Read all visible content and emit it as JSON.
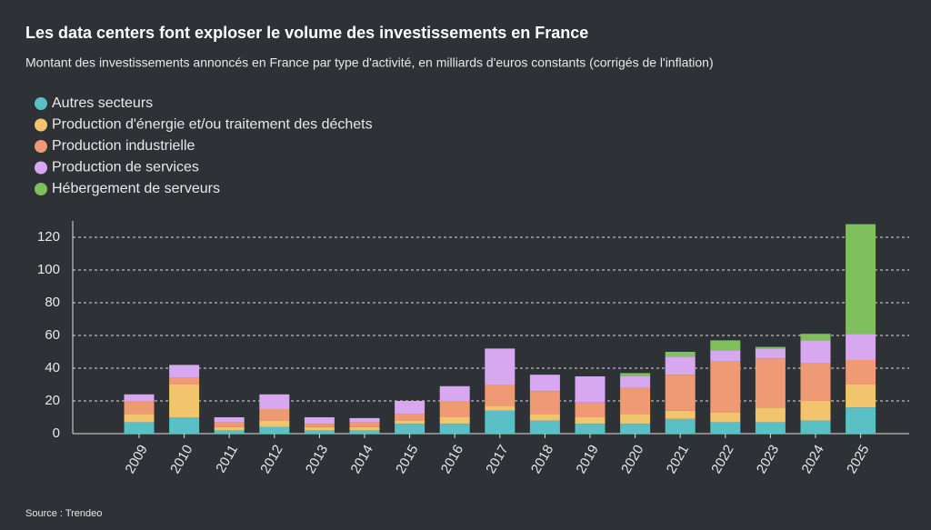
{
  "chart_data": {
    "type": "stacked_bar",
    "title": "Les data centers font exploser le volume des investissements en France",
    "subtitle": "Montant des investissements annoncés en France par type d'activité, en milliards d'euros constants (corrigés de l'inflation)",
    "source": "Source : Trendeo",
    "categories": [
      "2009",
      "2010",
      "2011",
      "2012",
      "2013",
      "2014",
      "2015",
      "2016",
      "2017",
      "2018",
      "2019",
      "2020",
      "2021",
      "2022",
      "2023",
      "2024",
      "2025"
    ],
    "series": [
      {
        "name": "Autres secteurs",
        "color": "#5bbfc6",
        "values": [
          7,
          10,
          2,
          4,
          2,
          2,
          6,
          6,
          14,
          8,
          6,
          6,
          9,
          7,
          7,
          8,
          16
        ]
      },
      {
        "name": "Production d'énergie et/ou traitement des déchets",
        "color": "#f2c46d",
        "values": [
          5,
          20,
          2,
          4,
          2,
          2,
          2,
          4,
          3,
          4,
          4,
          6,
          5,
          6,
          9,
          12,
          14
        ]
      },
      {
        "name": "Production industrielle",
        "color": "#ef9a74",
        "values": [
          8,
          4,
          3,
          7,
          2,
          3,
          4,
          10,
          13,
          14,
          9,
          16,
          22,
          31,
          30,
          23,
          15
        ]
      },
      {
        "name": "Production de services",
        "color": "#d7a8ef",
        "values": [
          4,
          8,
          3,
          9,
          4,
          2.5,
          8,
          9,
          22,
          10,
          16,
          7,
          11,
          7,
          6,
          14,
          16
        ]
      },
      {
        "name": "Hébergement de serveurs",
        "color": "#7fc05c",
        "values": [
          0,
          0,
          0,
          0,
          0,
          0,
          0,
          0,
          0,
          0,
          0,
          2,
          3,
          6,
          1,
          4,
          67
        ]
      }
    ],
    "ylim": [
      0,
      130
    ],
    "yticks": [
      0,
      20,
      40,
      60,
      80,
      100,
      120
    ],
    "grid": true
  }
}
